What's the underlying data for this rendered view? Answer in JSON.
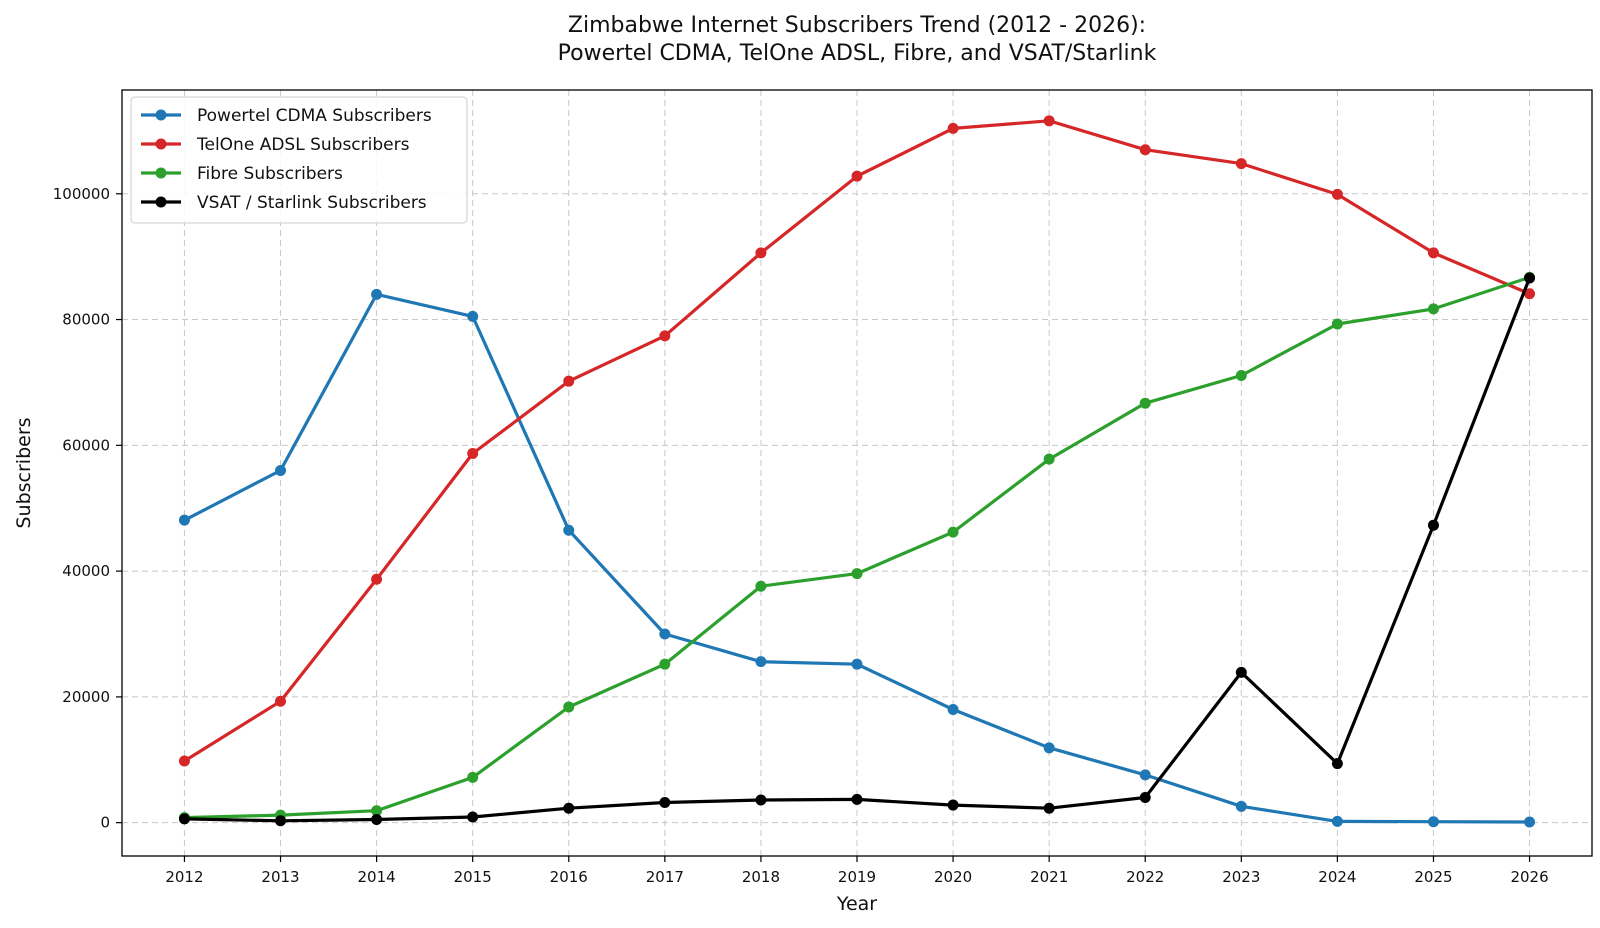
{
  "chart_data": {
    "type": "line",
    "title": "Zimbabwe Internet Subscribers Trend (2012 - 2026):",
    "subtitle": "Powertel CDMA, TelOne ADSL, Fibre, and VSAT/Starlink",
    "xlabel": "Year",
    "ylabel": "Subscribers",
    "x": [
      2012,
      2013,
      2014,
      2015,
      2016,
      2017,
      2018,
      2019,
      2020,
      2021,
      2022,
      2023,
      2024,
      2025,
      2026
    ],
    "xlim": [
      2011.35,
      2026.65
    ],
    "ylim": [
      -5300,
      116500
    ],
    "yticks": [
      0,
      20000,
      40000,
      60000,
      80000,
      100000
    ],
    "ytick_labels": [
      "0",
      "20000",
      "40000",
      "60000",
      "80000",
      "100000"
    ],
    "xtick_labels": [
      "2012",
      "2013",
      "2014",
      "2015",
      "2016",
      "2017",
      "2018",
      "2019",
      "2020",
      "2021",
      "2022",
      "2023",
      "2024",
      "2025",
      "2026"
    ],
    "grid": true,
    "legend_position": "upper-left",
    "series": [
      {
        "name": "Powertel CDMA Subscribers",
        "color": "#1f77b4",
        "values": [
          48100,
          56000,
          84000,
          80500,
          46500,
          30000,
          25600,
          25200,
          18000,
          11900,
          7600,
          2600,
          200,
          150,
          100
        ]
      },
      {
        "name": "TelOne ADSL Subscribers",
        "color": "#d62728",
        "values": [
          9800,
          19300,
          38700,
          58700,
          70200,
          77400,
          90600,
          102800,
          110400,
          111600,
          107000,
          104800,
          99900,
          90600,
          84100
        ]
      },
      {
        "name": "Fibre Subscribers",
        "color": "#2ca02c",
        "values": [
          800,
          1200,
          1900,
          7200,
          18400,
          25200,
          37600,
          39600,
          46200,
          57800,
          66700,
          71100,
          79300,
          81700,
          86700
        ]
      },
      {
        "name": "VSAT / Starlink Subscribers",
        "color": "#000000",
        "values": [
          600,
          300,
          500,
          900,
          2300,
          3200,
          3600,
          3700,
          2800,
          2300,
          4000,
          23900,
          9400,
          47300,
          86600
        ]
      }
    ]
  }
}
